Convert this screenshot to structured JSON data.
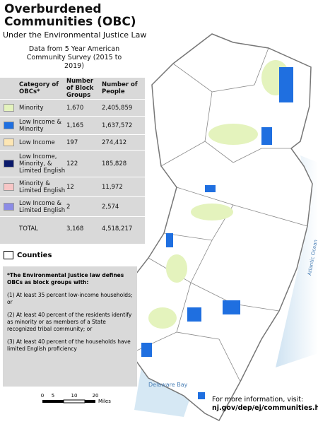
{
  "title": "Overburdened Communities (OBC)",
  "subtitle": "Under the Environmental Justice Law",
  "data_note": "Data from 5 Year American Community Survey (2015 to 2019)",
  "table": {
    "headers": [
      "Category of OBCs*",
      "Number of Block Groups",
      "Number of People"
    ],
    "rows": [
      {
        "category": "Minority",
        "block_groups": "1,670",
        "people": "2,405,859",
        "color": "#e4f3bd"
      },
      {
        "category": "Low Income & Minority",
        "block_groups": "1,165",
        "people": "1,637,572",
        "color": "#1f6fe0"
      },
      {
        "category": "Low Income",
        "block_groups": "197",
        "people": "274,412",
        "color": "#fde6b4"
      },
      {
        "category": "Low Income, Minority, & Limited English",
        "block_groups": "122",
        "people": "185,828",
        "color": "#0b1a6b"
      },
      {
        "category": "Minority & Limited English",
        "block_groups": "12",
        "people": "11,972",
        "color": "#f7c6c6"
      },
      {
        "category": "Low Income & Limited English",
        "block_groups": "2",
        "people": "2,574",
        "color": "#8c8ce6"
      }
    ],
    "total": {
      "category": "TOTAL",
      "block_groups": "3,168",
      "people": "4,518,217"
    }
  },
  "legend": {
    "counties": "Counties"
  },
  "footnote": {
    "heading": "*The Environmental Justice law defines OBCs as block groups with:",
    "items": [
      "(1) At least 35 percent low-income households; or",
      "(2) At least 40 percent of the residents identify as minority or as members of a State recognized tribal community; or",
      "(3) At least 40 percent of the households have limited English proficiency"
    ]
  },
  "scale_bar": {
    "labels": [
      "0",
      "5",
      "10",
      "20"
    ],
    "unit": "Miles"
  },
  "map_labels": {
    "bay": "Delaware Bay",
    "ocean": "Atlantic Ocean"
  },
  "more_info": {
    "text": "For more information, visit:",
    "url": "nj.gov/dep/ej/communities.html"
  }
}
